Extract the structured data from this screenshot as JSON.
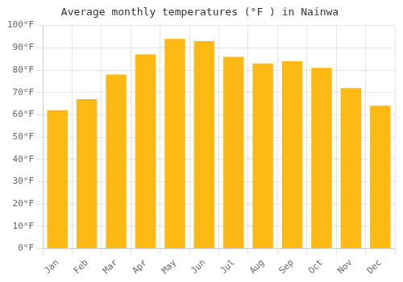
{
  "chart_data": {
    "type": "bar",
    "title": "Average monthly temperatures (°F ) in Nainwa",
    "categories": [
      "Jan",
      "Feb",
      "Mar",
      "Apr",
      "May",
      "Jun",
      "Jul",
      "Aug",
      "Sep",
      "Oct",
      "Nov",
      "Dec"
    ],
    "values": [
      62,
      67,
      78,
      87,
      94,
      93,
      86,
      83,
      84,
      81,
      72,
      64
    ],
    "color": "#FFB914",
    "ylim": [
      0,
      100
    ],
    "yticks": [
      {
        "value": 0,
        "label": "0°F"
      },
      {
        "value": 10,
        "label": "10°F"
      },
      {
        "value": 20,
        "label": "20°F"
      },
      {
        "value": 30,
        "label": "30°F"
      },
      {
        "value": 40,
        "label": "40°F"
      },
      {
        "value": 50,
        "label": "50°F"
      },
      {
        "value": 60,
        "label": "60°F"
      },
      {
        "value": 70,
        "label": "70°F"
      },
      {
        "value": 80,
        "label": "80°F"
      },
      {
        "value": 90,
        "label": "90°F"
      },
      {
        "value": 100,
        "label": "100°F"
      }
    ],
    "grid": true
  }
}
